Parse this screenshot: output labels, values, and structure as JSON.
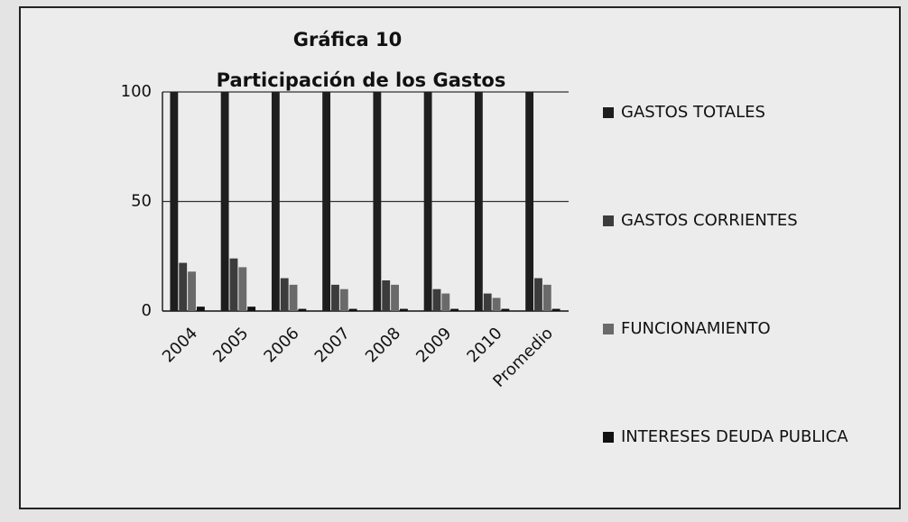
{
  "chart_data": {
    "type": "bar",
    "title": "Gráfica 10",
    "subtitle": "Participación de los Gastos",
    "categories": [
      "2004",
      "2005",
      "2006",
      "2007",
      "2008",
      "2009",
      "2010",
      "Promedio"
    ],
    "series": [
      {
        "name": "GASTOS TOTALES",
        "color": "#1e1e1e",
        "values": [
          100,
          100,
          100,
          100,
          100,
          100,
          100,
          100
        ]
      },
      {
        "name": "GASTOS CORRIENTES",
        "color": "#3c3c3c",
        "values": [
          22,
          24,
          15,
          12,
          14,
          10,
          8,
          15
        ]
      },
      {
        "name": "FUNCIONAMIENTO",
        "color": "#6a6a6a",
        "values": [
          18,
          20,
          12,
          10,
          12,
          8,
          6,
          12
        ]
      },
      {
        "name": "INTERESES  DEUDA PUBLICA",
        "color": "#111111",
        "values": [
          2,
          2,
          1,
          1,
          1,
          1,
          1,
          1
        ]
      }
    ],
    "ylim": [
      0,
      100
    ],
    "yticks": [
      0,
      50,
      100
    ],
    "grid": true,
    "legend": "right"
  }
}
